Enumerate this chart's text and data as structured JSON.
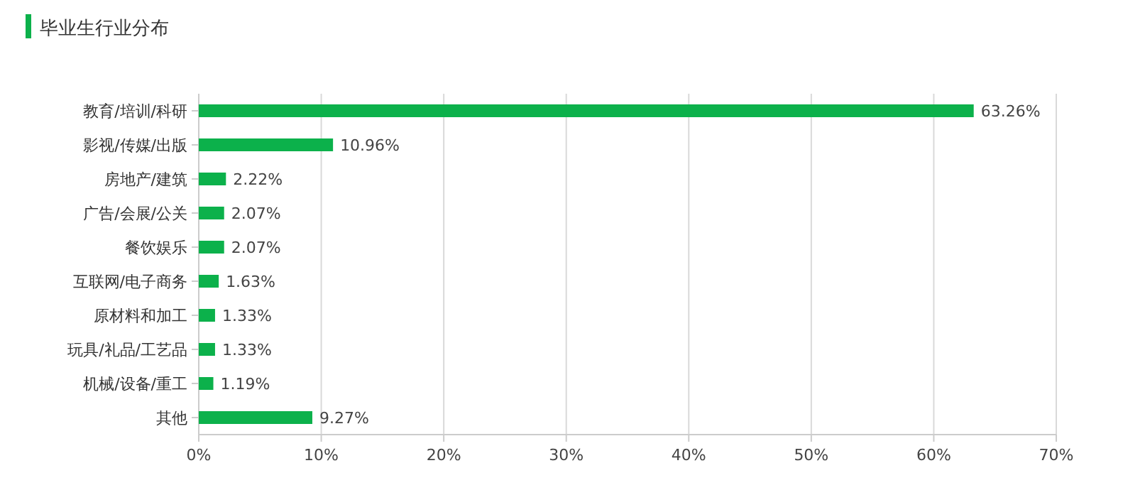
{
  "chart_data": {
    "type": "bar",
    "orientation": "horizontal",
    "title": "毕业生行业分布",
    "categories": [
      "教育/培训/科研",
      "影视/传媒/出版",
      "房地产/建筑",
      "广告/会展/公关",
      "餐饮娱乐",
      "互联网/电子商务",
      "原材料和加工",
      "玩具/礼品/工艺品",
      "机械/设备/重工",
      "其他"
    ],
    "values": [
      63.26,
      10.96,
      2.22,
      2.07,
      2.07,
      1.63,
      1.33,
      1.33,
      1.19,
      9.27
    ],
    "value_labels": [
      "63.26%",
      "10.96%",
      "2.22%",
      "2.07%",
      "2.07%",
      "1.63%",
      "1.33%",
      "1.33%",
      "1.19%",
      "9.27%"
    ],
    "color": "#0cb14b",
    "xlim": [
      0,
      70
    ],
    "xticks": [
      {
        "value": 0,
        "label": "0%"
      },
      {
        "value": 10,
        "label": "10%"
      },
      {
        "value": 20,
        "label": "20%"
      },
      {
        "value": 30,
        "label": "30%"
      },
      {
        "value": 40,
        "label": "40%"
      },
      {
        "value": 50,
        "label": "50%"
      },
      {
        "value": 60,
        "label": "60%"
      },
      {
        "value": 70,
        "label": "70%"
      }
    ],
    "grid": "x"
  }
}
